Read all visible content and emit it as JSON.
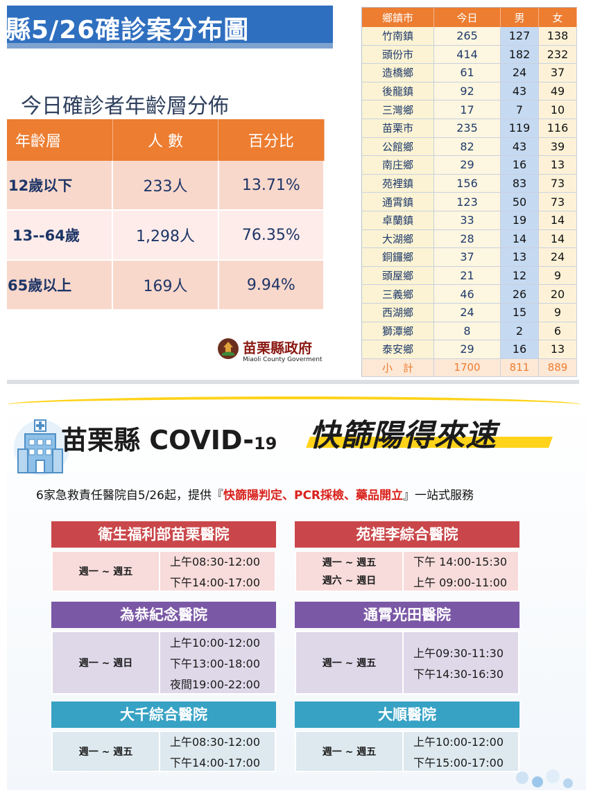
{
  "header": {
    "title": "縣5/26確診案分布圖"
  },
  "age_section": {
    "subtitle": "今日確診者年齡層分佈",
    "columns": [
      "年齡層",
      "人 數",
      "百分比"
    ],
    "rows": [
      {
        "group": "12歲以下",
        "count": "233人",
        "percent": "13.71%"
      },
      {
        "group": "13--64歲",
        "count": "1,298人",
        "percent": "76.35%"
      },
      {
        "group": "65歲以上",
        "count": "169人",
        "percent": "9.94%"
      }
    ]
  },
  "logo": {
    "name": "苗栗縣政府",
    "english": "Miaoli County Goverment"
  },
  "town_table": {
    "columns": [
      "鄉鎮市",
      "今日",
      "男",
      "女"
    ],
    "rows": [
      [
        "竹南鎮",
        "265",
        "127",
        "138"
      ],
      [
        "頭份市",
        "414",
        "182",
        "232"
      ],
      [
        "造橋鄉",
        "61",
        "24",
        "37"
      ],
      [
        "後龍鎮",
        "92",
        "43",
        "49"
      ],
      [
        "三灣鄉",
        "17",
        "7",
        "10"
      ],
      [
        "苗栗市",
        "235",
        "119",
        "116"
      ],
      [
        "公館鄉",
        "82",
        "43",
        "39"
      ],
      [
        "南庄鄉",
        "29",
        "16",
        "13"
      ],
      [
        "苑裡鎮",
        "156",
        "83",
        "73"
      ],
      [
        "通霄鎮",
        "123",
        "50",
        "73"
      ],
      [
        "卓蘭鎮",
        "33",
        "19",
        "14"
      ],
      [
        "大湖鄉",
        "28",
        "14",
        "14"
      ],
      [
        "銅鑼鄉",
        "37",
        "13",
        "24"
      ],
      [
        "頭屋鄉",
        "21",
        "12",
        "9"
      ],
      [
        "三義鄉",
        "46",
        "26",
        "20"
      ],
      [
        "西湖鄉",
        "24",
        "15",
        "9"
      ],
      [
        "獅潭鄉",
        "8",
        "2",
        "6"
      ],
      [
        "泰安鄉",
        "29",
        "16",
        "13"
      ]
    ],
    "total": [
      "小　計",
      "1700",
      "811",
      "889"
    ]
  },
  "poster": {
    "title_main": "苗栗縣 COVID-",
    "title_num": "19",
    "slogan": "快篩陽得來速",
    "intro_prefix": "6家急救責任醫院自5/26起，提供『",
    "intro_highlight": "快篩陽判定、PCR採檢、藥品開立",
    "intro_suffix": "』一站式服務"
  },
  "hospitals": [
    {
      "name": "衛生福利部苗栗醫院",
      "days": [
        "週一 ~ 週五"
      ],
      "hours": [
        "上午08:30-12:00",
        "下午14:00-17:00"
      ]
    },
    {
      "name": "苑裡李綜合醫院",
      "days": [
        "週一 ~ 週五",
        "週六 ~ 週日"
      ],
      "hours": [
        "下午 14:00-15:30",
        "上午 09:00-11:00"
      ]
    },
    {
      "name": "為恭紀念醫院",
      "days": [
        "週一 ~ 週日"
      ],
      "hours": [
        "上午10:00-12:00",
        "下午13:00-18:00",
        "夜間19:00-22:00"
      ]
    },
    {
      "name": "通霄光田醫院",
      "days": [
        "週一 ~ 週五"
      ],
      "hours": [
        "上午09:30-11:30",
        "下午14:30-16:30"
      ]
    },
    {
      "name": "大千綜合醫院",
      "days": [
        "週一 ~ 週五"
      ],
      "hours": [
        "上午08:30-12:00",
        "下午14:00-17:00"
      ]
    },
    {
      "name": "大順醫院",
      "days": [
        "週一 ~ 週五"
      ],
      "hours": [
        "上午10:00-12:00",
        "下午15:00-17:00"
      ]
    }
  ],
  "colors": {
    "banner_blue": "#2f6fbf",
    "orange_header": "#ec7d31",
    "red_card": "#c9474a",
    "purple_card": "#7b58a6",
    "teal_card": "#37a2c4",
    "highlight_red": "#d9221c",
    "slogan_yellow": "#ffd31a"
  }
}
